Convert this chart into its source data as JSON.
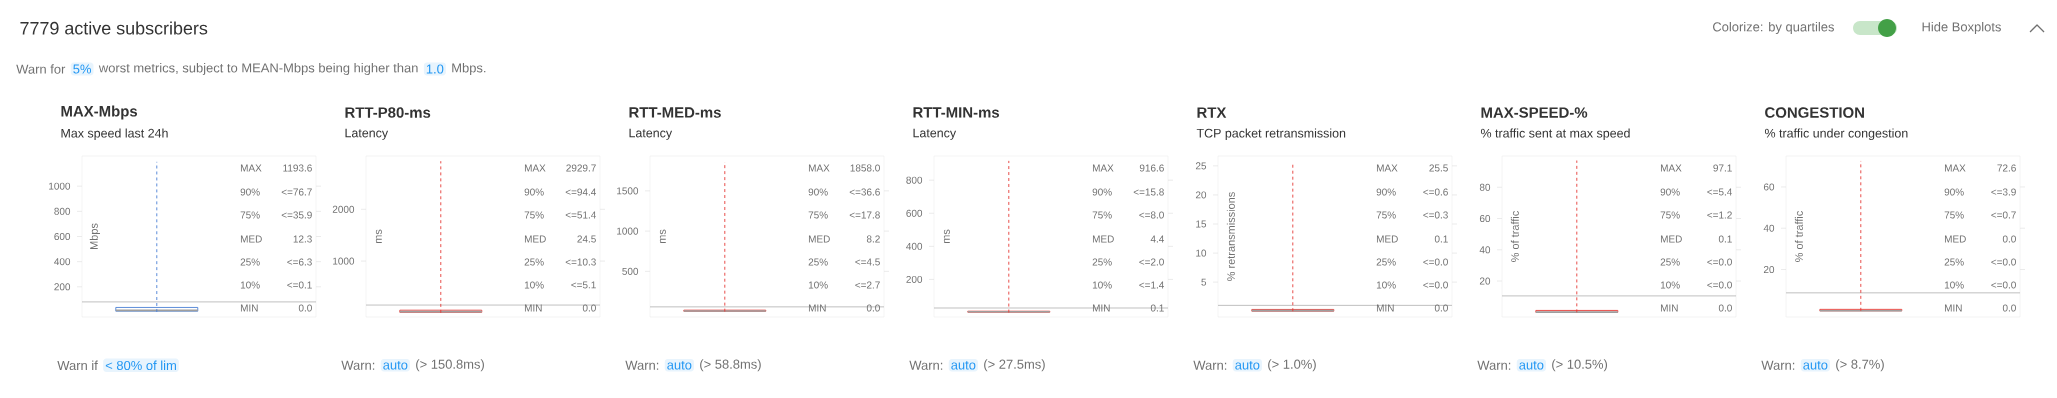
{
  "chart_data": [
    {
      "type": "other",
      "title": "7779 active subscribers",
      "annotations": [
        "Warn for",
        "5%",
        "worst metrics, subject to MEAN-Mbps being higher than",
        "1.0",
        "Mbps.",
        "Colorize: by quartiles",
        "Hide Boxplots"
      ]
    },
    {
      "type": "box",
      "title": "MAX-Mbps",
      "subtitle": "Max speed last 24h",
      "ylabel": "Mbps",
      "categories": [
        null
      ],
      "color": "#4a7fd4",
      "line_style": "dashed",
      "ylim": [
        -40,
        1240
      ],
      "yticks": [
        200,
        400,
        600,
        800,
        1000
      ],
      "boxes": [
        {
          "low": 0.0,
          "q1": 6.3,
          "median": 12.3,
          "q3": 35.9,
          "high": 1193.6
        }
      ],
      "ref_lines": [
        {
          "axis": "y",
          "value": 80
        }
      ],
      "annotations": [
        "MAX",
        "1193.6",
        "90%",
        "<=76.7",
        "75%",
        "<=35.9",
        "MED",
        "12.3",
        "25%",
        "<=6.3",
        "10%",
        "<=0.1",
        "MIN",
        "0.0",
        "Warn if",
        "< 80% of lim"
      ]
    },
    {
      "type": "box",
      "title": "RTT-P80-ms",
      "subtitle": "Latency",
      "ylabel": "ms",
      "categories": [
        null
      ],
      "color": "#e53935",
      "line_style": "dashed",
      "ylim": [
        -80,
        3030
      ],
      "yticks": [
        1000,
        2000
      ],
      "boxes": [
        {
          "low": 0.0,
          "q1": 10.3,
          "median": 24.5,
          "q3": 51.4,
          "high": 2929.7
        }
      ],
      "ref_lines": [
        {
          "axis": "y",
          "value": 150.8
        }
      ],
      "annotations": [
        "MAX",
        "2929.7",
        "90%",
        "<=94.4",
        "75%",
        "<=51.4",
        "MED",
        "24.5",
        "25%",
        "<=10.3",
        "10%",
        "<=5.1",
        "MIN",
        "0.0",
        "Warn:",
        "auto",
        "(> 150.8ms)"
      ]
    },
    {
      "type": "box",
      "title": "RTT-MED-ms",
      "subtitle": "Latency",
      "ylabel": "ms",
      "categories": [
        null
      ],
      "color": "#e53935",
      "line_style": "dashed",
      "ylim": [
        -67,
        1933
      ],
      "yticks": [
        500,
        1000,
        1500
      ],
      "boxes": [
        {
          "low": 0.0,
          "q1": 4.5,
          "median": 8.2,
          "q3": 17.8,
          "high": 1858.0
        }
      ],
      "ref_lines": [
        {
          "axis": "y",
          "value": 58.8
        }
      ],
      "annotations": [
        "MAX",
        "1858.0",
        "90%",
        "<=36.6",
        "75%",
        "<=17.8",
        "MED",
        "8.2",
        "25%",
        "<=4.5",
        "10%",
        "<=2.7",
        "MIN",
        "0.0",
        "Warn:",
        "auto",
        "(> 58.8ms)"
      ]
    },
    {
      "type": "box",
      "title": "RTT-MIN-ms",
      "subtitle": "Latency",
      "ylabel": "ms",
      "categories": [
        null
      ],
      "color": "#e53935",
      "line_style": "dashed",
      "ylim": [
        -27,
        946
      ],
      "yticks": [
        200,
        400,
        600,
        800
      ],
      "boxes": [
        {
          "low": 0.1,
          "q1": 2.0,
          "median": 4.4,
          "q3": 8.0,
          "high": 916.6
        }
      ],
      "ref_lines": [
        {
          "axis": "y",
          "value": 27.5
        }
      ],
      "annotations": [
        "MAX",
        "916.6",
        "90%",
        "<=15.8",
        "75%",
        "<=8.0",
        "MED",
        "4.4",
        "25%",
        "<=2.0",
        "10%",
        "<=1.4",
        "MIN",
        "0.1",
        "Warn:",
        "auto",
        "(> 27.5ms)"
      ]
    },
    {
      "type": "box",
      "title": "RTX",
      "subtitle": "TCP packet retransmission",
      "ylabel": "% retransmissions",
      "categories": [
        null
      ],
      "color": "#e53935",
      "line_style": "dashed",
      "ylim": [
        -1,
        26.7
      ],
      "yticks": [
        5,
        10,
        15,
        20,
        25
      ],
      "boxes": [
        {
          "low": 0.0,
          "q1": 0.0,
          "median": 0.1,
          "q3": 0.3,
          "high": 25.5
        }
      ],
      "ref_lines": [
        {
          "axis": "y",
          "value": 1.0
        }
      ],
      "annotations": [
        "MAX",
        "25.5",
        "90%",
        "<=0.6",
        "75%",
        "<=0.3",
        "MED",
        "0.1",
        "25%",
        "<=0.0",
        "10%",
        "<=0.0",
        "MIN",
        "0.0",
        "Warn:",
        "auto",
        "(> 1.0%)"
      ]
    },
    {
      "type": "box",
      "title": "MAX-SPEED-%",
      "subtitle": "% traffic sent at max speed",
      "ylabel": "% of traffic",
      "categories": [
        null
      ],
      "color": "#e53935",
      "line_style": "dashed",
      "ylim": [
        -3,
        100
      ],
      "yticks": [
        20,
        40,
        60,
        80
      ],
      "boxes": [
        {
          "low": 0.0,
          "q1": 0.0,
          "median": 0.1,
          "q3": 1.2,
          "high": 97.1
        }
      ],
      "ref_lines": [
        {
          "axis": "y",
          "value": 10.5
        }
      ],
      "annotations": [
        "MAX",
        "97.1",
        "90%",
        "<=5.4",
        "75%",
        "<=1.2",
        "MED",
        "0.1",
        "25%",
        "<=0.0",
        "10%",
        "<=0.0",
        "MIN",
        "0.0",
        "Warn:",
        "auto",
        "(> 10.5%)"
      ]
    },
    {
      "type": "box",
      "title": "CONGESTION",
      "subtitle": "% traffic under congestion",
      "ylabel": "% of traffic",
      "categories": [
        null
      ],
      "color": "#e53935",
      "line_style": "dashed",
      "ylim": [
        -3,
        75
      ],
      "yticks": [
        20,
        40,
        60
      ],
      "boxes": [
        {
          "low": 0.0,
          "q1": 0.0,
          "median": 0.0,
          "q3": 0.7,
          "high": 72.6
        }
      ],
      "ref_lines": [
        {
          "axis": "y",
          "value": 8.7
        }
      ],
      "annotations": [
        "MAX",
        "72.6",
        "90%",
        "<=3.9",
        "75%",
        "<=0.7",
        "MED",
        "0.0",
        "25%",
        "<=0.0",
        "10%",
        "<=0.0",
        "MIN",
        "0.0",
        "Warn:",
        "auto",
        "(> 8.7%)"
      ]
    }
  ]
}
